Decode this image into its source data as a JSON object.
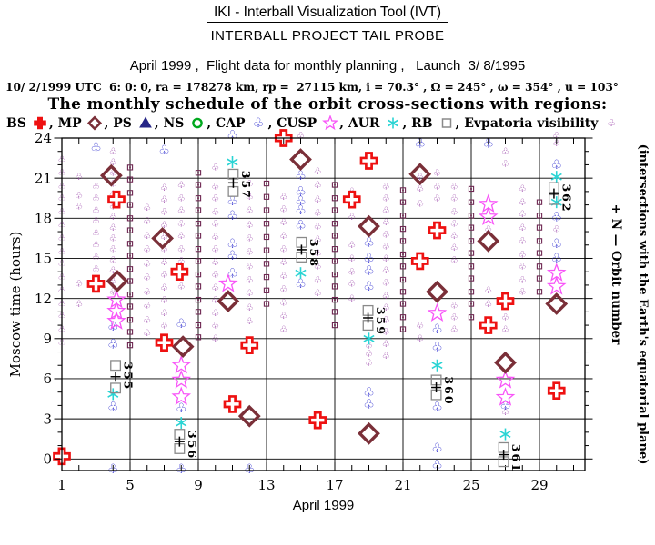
{
  "header": {
    "title1": "IKI - Interball Visualization Tool (IVT)",
    "title2": "INTERBALL PROJECT TAIL PROBE",
    "subtitle": "April 1999 ,  Flight data for monthly planning ,   Launch  3/ 8/1995",
    "orbit_info": "10/ 2/1999 UTC  6: 0: 0, ra = 178278 km, rp =  27115 km, i = 70.3° , Ω = 245° , ω = 354° , u = 103°",
    "schedule_title": "The monthly schedule of the orbit cross-sections with regions:"
  },
  "legend": [
    {
      "label": "BS",
      "symbol": "cross",
      "color": "#ee1111"
    },
    {
      "label": "MP",
      "symbol": "diamond",
      "color": "#7a2f38"
    },
    {
      "label": "PS",
      "symbol": "triangle",
      "color": "#262687"
    },
    {
      "label": "NS",
      "symbol": "circle",
      "color": "#00a81e"
    },
    {
      "label": "CAP",
      "symbol": "club",
      "color": "#2323cc"
    },
    {
      "label": "CUSP",
      "symbol": "star",
      "color": "#f855f8"
    },
    {
      "label": "AUR",
      "symbol": "asterisk",
      "color": "#2ad4d4"
    },
    {
      "label": "RB",
      "symbol": "square",
      "color": "#8a8a8a"
    },
    {
      "label": "Evpatoria visibility",
      "symbol": "small-club",
      "color": "#8d2d9e"
    }
  ],
  "chart_data": {
    "type": "scatter",
    "title": "The monthly schedule of the orbit cross-sections with regions:",
    "xlabel": "April 1999",
    "ylabel": "Moscow time (hours)",
    "right_label1": "+ N  —  Orbit number",
    "right_label2": "(intersections with the Earth's equatorial plane)",
    "xlim": [
      1,
      31.67
    ],
    "ylim": [
      -0.86,
      24
    ],
    "xticks": [
      1,
      5,
      9,
      13,
      17,
      21,
      25,
      29
    ],
    "yticks": [
      0,
      3,
      6,
      9,
      12,
      15,
      18,
      21,
      24
    ],
    "grid": true,
    "series": {
      "BS": [
        [
          1,
          0.2
        ],
        [
          3,
          13.1
        ],
        [
          4.2,
          19.4
        ],
        [
          7,
          8.7
        ],
        [
          7.9,
          14.0
        ],
        [
          11,
          4.1
        ],
        [
          12,
          8.5
        ],
        [
          14,
          24.0
        ],
        [
          16,
          2.9
        ],
        [
          18,
          19.4
        ],
        [
          19,
          22.3
        ],
        [
          22,
          14.8
        ],
        [
          23,
          17.1
        ],
        [
          26,
          10.0
        ],
        [
          27,
          11.8
        ],
        [
          30,
          5.1
        ]
      ],
      "MP": [
        [
          3.9,
          21.2
        ],
        [
          4.25,
          13.3
        ],
        [
          6.9,
          16.5
        ],
        [
          8.1,
          8.4
        ],
        [
          10.75,
          11.8
        ],
        [
          12,
          3.2
        ],
        [
          15,
          22.4
        ],
        [
          19,
          17.4
        ],
        [
          19,
          1.9
        ],
        [
          22,
          21.3
        ],
        [
          23,
          12.5
        ],
        [
          26,
          16.3
        ],
        [
          27,
          7.2
        ],
        [
          30,
          11.6
        ]
      ],
      "PS": [],
      "NS": [],
      "CAP": [
        [
          3,
          23.3
        ],
        [
          4,
          9.9
        ],
        [
          4,
          8.6
        ],
        [
          4,
          3.9
        ],
        [
          4,
          -0.75
        ],
        [
          7,
          23.1
        ],
        [
          8,
          10.1
        ],
        [
          8,
          3.8
        ],
        [
          8,
          -0.75
        ],
        [
          11,
          24.2
        ],
        [
          11,
          19.3
        ],
        [
          11,
          18.2
        ],
        [
          11,
          16.1
        ],
        [
          11,
          15.2
        ],
        [
          11,
          13.9
        ],
        [
          12,
          -0.75
        ],
        [
          15,
          21.2
        ],
        [
          15,
          20.0
        ],
        [
          15,
          19.3
        ],
        [
          15,
          18.6
        ],
        [
          15,
          17.5
        ],
        [
          15,
          13.1
        ],
        [
          19,
          16.2
        ],
        [
          19,
          15.0
        ],
        [
          19,
          14.1
        ],
        [
          19,
          12.9
        ],
        [
          19,
          5.0
        ],
        [
          19,
          4.1
        ],
        [
          22,
          23.6
        ],
        [
          23,
          9.7
        ],
        [
          23,
          8.4
        ],
        [
          23,
          3.9
        ],
        [
          23,
          0.8
        ],
        [
          23,
          -0.45
        ],
        [
          26,
          23.6
        ],
        [
          27,
          4.0
        ],
        [
          30,
          22.0
        ],
        [
          30,
          18.1
        ],
        [
          30,
          16.1
        ],
        [
          30,
          15.0
        ]
      ],
      "CUSP": [
        [
          4.2,
          11.9
        ],
        [
          4.2,
          11.05
        ],
        [
          4.2,
          10.3
        ],
        [
          8,
          7.0
        ],
        [
          8,
          5.9
        ],
        [
          8,
          4.65
        ],
        [
          10.75,
          13.1
        ],
        [
          23,
          10.9
        ],
        [
          26,
          19.05
        ],
        [
          26,
          18.1
        ],
        [
          27,
          5.9
        ],
        [
          27,
          4.6
        ],
        [
          30,
          13.9
        ],
        [
          30,
          12.9
        ]
      ],
      "AUR": [
        [
          4,
          4.85
        ],
        [
          8,
          2.7
        ],
        [
          11,
          22.2
        ],
        [
          15,
          13.9
        ],
        [
          19,
          9.0
        ],
        [
          23,
          7.0
        ],
        [
          27,
          1.85
        ],
        [
          30,
          21.1
        ],
        [
          30,
          19.2
        ]
      ]
    },
    "orbits": [
      {
        "n": "355",
        "day": 4.15,
        "h_top": 7.0,
        "h_bot": 5.3,
        "h_plus": 6.15
      },
      {
        "n": "356",
        "day": 7.9,
        "h_top": 1.85,
        "h_bot": 0.77,
        "h_plus": 1.3
      },
      {
        "n": "357",
        "day": 11.05,
        "h_top": 21.3,
        "h_bot": 20.0,
        "h_plus": 20.65
      },
      {
        "n": "358",
        "day": 15.05,
        "h_top": 16.2,
        "h_bot": 15.1,
        "h_plus": 15.65
      },
      {
        "n": "359",
        "day": 18.95,
        "h_top": 11.1,
        "h_bot": 10.0,
        "h_plus": 10.55
      },
      {
        "n": "360",
        "day": 22.95,
        "h_top": 5.9,
        "h_bot": 4.8,
        "h_plus": 5.35
      },
      {
        "n": "361",
        "day": 26.9,
        "h_top": 0.85,
        "h_bot": -0.2,
        "h_plus": 0.32
      },
      {
        "n": "362",
        "day": 29.85,
        "h_top": 20.3,
        "h_bot": 19.4,
        "h_plus": 19.85
      }
    ],
    "visibility_columns": [
      {
        "day": 1,
        "symbol": "club",
        "hours": [
          8.7,
          9.7,
          10.7,
          11.6,
          12.6,
          13.6,
          14.6,
          15.5,
          16.5,
          17.5,
          18.5,
          19.5,
          20.4,
          21.4,
          22.4
        ]
      },
      {
        "day": 2,
        "symbol": "club",
        "hours": [
          11.6,
          13.1,
          18.9,
          19.7,
          21.1
        ]
      },
      {
        "day": 3,
        "symbol": "club",
        "hours": [
          13.3,
          14.2,
          15.1,
          16.0,
          16.9,
          17.8,
          18.6,
          19.5,
          20.4
        ]
      },
      {
        "day": 4,
        "symbol": "club",
        "hours": [
          12.5,
          13.3,
          14.1,
          14.9,
          15.7,
          16.5,
          17.3,
          18.1,
          18.9,
          19.8,
          20.6,
          21.4,
          22.2,
          23.0
        ]
      },
      {
        "day": 5,
        "symbol": "square",
        "hours": [
          8.5,
          9.5,
          10.4,
          11.4,
          12.3,
          13.3,
          14.2,
          15.2,
          16.1,
          17.1,
          18.0,
          19.0,
          19.9,
          20.9,
          21.8
        ]
      },
      {
        "day": 6,
        "symbol": "club",
        "hours": [
          9.4,
          10.4,
          11.5,
          12.5,
          13.6,
          14.6,
          15.7,
          16.7,
          17.8,
          18.8
        ]
      },
      {
        "day": 7,
        "symbol": "club",
        "hours": [
          10.0,
          10.9,
          11.9,
          12.8,
          13.8,
          14.7,
          15.7,
          16.6,
          17.5,
          18.5,
          19.4,
          20.3
        ]
      },
      {
        "day": 8,
        "symbol": "club",
        "hours": [
          12.9,
          13.8,
          14.8,
          15.7,
          16.7,
          17.6,
          18.6,
          19.5,
          20.5
        ]
      },
      {
        "day": 9,
        "symbol": "square",
        "hours": [
          9.1,
          10.0,
          11.0,
          11.9,
          12.9,
          13.8,
          14.8,
          15.7,
          16.7,
          17.6,
          18.6,
          19.5,
          20.5,
          21.4
        ]
      },
      {
        "day": 10,
        "symbol": "club",
        "hours": [
          9.0,
          10.0,
          10.9,
          11.9,
          12.8,
          13.8,
          14.7,
          15.7,
          16.6,
          17.6,
          18.5,
          19.5,
          20.4,
          21.8
        ]
      },
      {
        "day": 12,
        "symbol": "club",
        "hours": [
          10.3,
          11.3,
          12.4,
          13.4,
          14.4,
          15.5,
          16.5,
          17.5,
          18.6,
          19.6,
          20.6
        ]
      },
      {
        "day": 13,
        "symbol": "square",
        "hours": [
          11.6,
          12.6,
          13.6,
          14.6,
          15.6,
          16.6,
          17.6,
          18.6,
          19.6,
          20.6
        ]
      },
      {
        "day": 14,
        "symbol": "club",
        "hours": [
          9.7,
          10.7,
          11.7,
          12.7,
          13.7,
          14.7,
          15.7,
          16.7,
          17.7,
          18.7,
          19.6
        ]
      },
      {
        "day": 15,
        "symbol": "club",
        "hours": [
          24.2
        ]
      },
      {
        "day": 16,
        "symbol": "club",
        "hours": [
          12.4,
          13.4,
          14.4,
          15.4,
          16.4,
          17.4,
          18.4,
          19.4,
          20.5,
          21.5
        ]
      },
      {
        "day": 17,
        "symbol": "square",
        "hours": [
          10.0,
          11.0,
          11.9,
          12.9,
          13.8,
          14.8,
          15.7,
          16.7,
          17.6,
          18.6,
          19.5,
          20.5
        ]
      },
      {
        "day": 18,
        "symbol": "club",
        "hours": [
          12.0,
          13.1,
          14.0,
          15.0,
          16.0,
          18.1,
          19.0,
          20.0
        ]
      },
      {
        "day": 19,
        "symbol": "club",
        "hours": [
          7.2,
          7.9,
          8.5
        ]
      },
      {
        "day": 20,
        "symbol": "club",
        "hours": [
          7.7,
          8.6,
          9.5,
          10.4,
          11.3,
          12.2,
          13.2,
          14.1,
          15.0,
          15.9,
          16.8,
          17.7,
          18.6,
          19.5,
          20.4
        ]
      },
      {
        "day": 21,
        "symbol": "square",
        "hours": [
          9.7,
          10.6,
          11.6,
          12.5,
          13.4,
          14.4,
          15.3,
          16.3,
          17.2,
          18.2,
          19.2,
          20.1
        ]
      },
      {
        "day": 22,
        "symbol": "club",
        "hours": [
          9.0,
          10.0,
          19.1,
          20.2,
          21.1
        ]
      },
      {
        "day": 23,
        "symbol": "club",
        "hours": [
          19.5,
          20.4,
          21.4
        ]
      },
      {
        "day": 24,
        "symbol": "club",
        "hours": [
          9.7,
          10.6,
          11.5,
          14.9,
          15.8,
          16.7,
          17.6,
          18.5,
          19.5,
          20.4
        ]
      },
      {
        "day": 25,
        "symbol": "square",
        "hours": [
          10.6,
          11.6,
          12.5,
          13.5,
          14.4,
          15.4,
          16.3,
          17.3,
          18.2,
          19.2,
          20.2
        ]
      },
      {
        "day": 26,
        "symbol": "club",
        "hours": [
          11.6,
          12.6,
          17.2
        ]
      },
      {
        "day": 27,
        "symbol": "club",
        "hours": [
          3.5,
          9.7,
          10.6,
          22.1,
          23.0
        ]
      },
      {
        "day": 28,
        "symbol": "club",
        "hours": [
          12.5,
          13.4,
          14.4,
          15.3,
          16.3,
          17.3,
          18.3,
          19.2,
          20.2
        ]
      },
      {
        "day": 29,
        "symbol": "square",
        "hours": [
          12.5,
          13.5,
          14.4,
          15.4,
          16.3,
          17.3,
          18.2,
          19.2
        ]
      },
      {
        "day": 30,
        "symbol": "club",
        "hours": [
          17.2,
          23.6,
          24.2
        ]
      }
    ],
    "colors": {
      "frame": "#000000",
      "grid": "#000000",
      "visibility_club": "#8d2d9e",
      "visibility_square": "#6e2752",
      "orbit_square": "#8a8a8a",
      "orbit_plus": "#000000"
    }
  }
}
